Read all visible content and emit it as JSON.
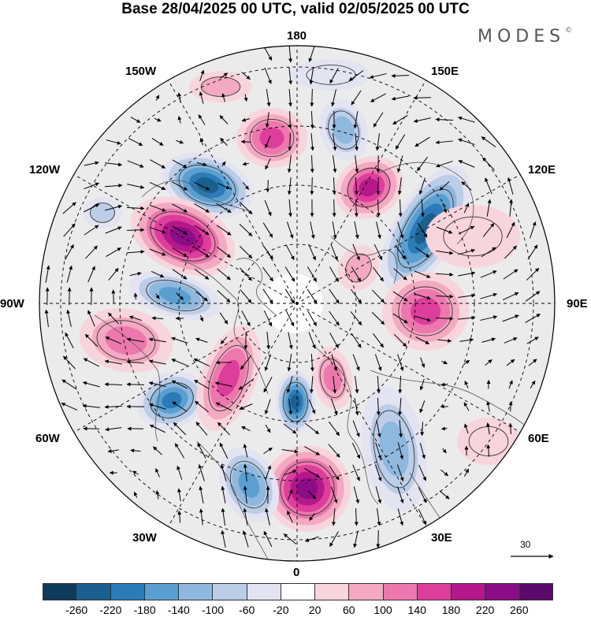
{
  "title": "Base 28/04/2025 00 UTC, valid 02/05/2025 00 UTC",
  "logo": "MODES",
  "logo_mark": "©",
  "longitude_labels": [
    "180",
    "150E",
    "120E",
    "90E",
    "60E",
    "30E",
    "0",
    "30W",
    "60W",
    "90W",
    "120W",
    "150W"
  ],
  "reference_vector_label": "30",
  "colorbar": {
    "ticks": [
      "-260",
      "-220",
      "-180",
      "-140",
      "-100",
      "-60",
      "-20",
      "20",
      "60",
      "100",
      "140",
      "180",
      "220",
      "260"
    ],
    "colors": [
      "#0e3a5c",
      "#1a5f8e",
      "#2b7bb8",
      "#5a9fd0",
      "#8fb8de",
      "#bccde8",
      "#e4e3f1",
      "#ffffff",
      "#f8d5dc",
      "#f3a9c2",
      "#ec78ad",
      "#dd3e9c",
      "#b4188a",
      "#8a0d86",
      "#5a0a6a"
    ]
  },
  "colors": {
    "land_outline": "#555555",
    "graticule": "#000000",
    "background_field": "#ebebeb"
  },
  "map_features": [
    "polar-stereographic-projection",
    "geopotential-anomaly-shading",
    "wind-vectors",
    "coastlines",
    "graticule"
  ]
}
